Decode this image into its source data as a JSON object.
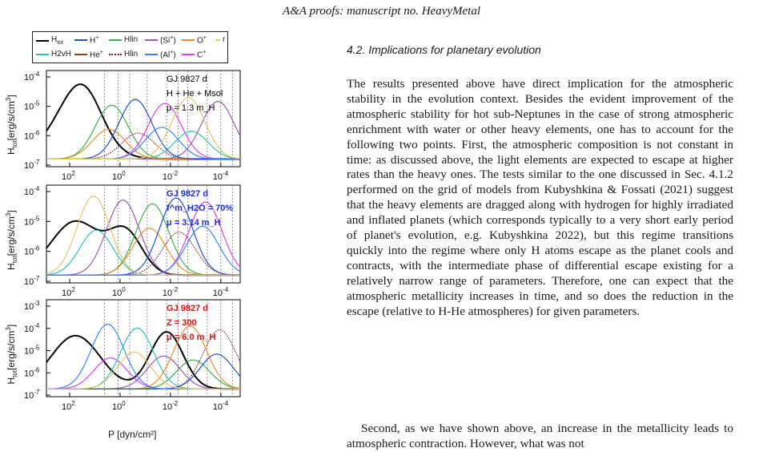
{
  "header": {
    "title": "A&A proofs: manuscript no. HeavyMetal"
  },
  "legend": {
    "items": [
      {
        "label": "H",
        "sub": "tot",
        "color": "#000000",
        "style": "solid"
      },
      {
        "label": "H",
        "sup": "+",
        "color": "#1f4fd8",
        "style": "solid"
      },
      {
        "label": "Hlin",
        "color": "#3cb44b",
        "style": "solid"
      },
      {
        "label": "(Si",
        "sup": "+",
        "tail": ")",
        "color": "#9b59b6",
        "style": "solid"
      },
      {
        "label": "O",
        "sup": "+",
        "color": "#f28c28",
        "style": "solid"
      },
      {
        "label": "r",
        "color": "#e9c46a",
        "style": "solid"
      },
      {
        "label": "H2vH",
        "color": "#2ec4b6",
        "style": "solid"
      },
      {
        "label": "He",
        "sup": "+",
        "color": "#7a4a1e",
        "style": "solid"
      },
      {
        "label": "Hlin",
        "color": "#8b1a2a",
        "style": "dotted"
      },
      {
        "label": "(Al",
        "sup": "+",
        "tail": ")",
        "color": "#3a86ff",
        "style": "solid"
      },
      {
        "label": "C",
        "sup": "+",
        "color": "#e040fb",
        "style": "solid"
      }
    ]
  },
  "figure": {
    "ylabel": "H_tot [erg/s/cm^3]",
    "xlabel": "P [dyn/cm²]",
    "xticks": [
      "10^2",
      "10^0",
      "10^-2",
      "10^-4"
    ],
    "panels": [
      {
        "yticks": [
          "10^-4",
          "10^-5",
          "10^-6",
          "10^-7"
        ],
        "anno": [
          "GJ 9827 d",
          "H + He + Msol",
          "μ = 1.3 m_H"
        ],
        "anno_color": "#000000"
      },
      {
        "yticks": [
          "10^-4",
          "10^-5",
          "10^-6",
          "10^-7"
        ],
        "anno": [
          "GJ 9827 d",
          "f^m_H2O = 70%",
          "μ = 3.14 m_H"
        ],
        "anno_color": "#1f2fd8"
      },
      {
        "yticks": [
          "10^-3",
          "10^-4",
          "10^-5",
          "10^-6",
          "10^-7"
        ],
        "anno": [
          "GJ 9827 d",
          "Z = 300",
          "μ = 6.0 m_H"
        ],
        "anno_color": "#e01010"
      }
    ]
  },
  "section": {
    "title": "4.2. Implications for planetary evolution"
  },
  "paragraphs": [
    "The results presented above have direct implication for the atmospheric stability in the evolution context. Besides the evident improvement of the atmospheric stability for hot sub-Neptunes in the case of strong atmospheric enrichment with water or other heavy elements, one has to account for the following two points. First, the atmospheric composition is not constant in time: as discussed above, the light elements are expected to escape at higher rates than the heavy ones. The tests similar to the one discussed in Sec. 4.1.2 performed on the grid of models from Kubyshkina & Fossati (2021) suggest that the heavy elements are dragged along with hydrogen for highly irradiated and inflated planets (which corresponds typically to a very short early period of planet's evolution, e.g. Kubyshkina 2022), but this regime transitions quickly into the regime where only H atoms escape as the planet cools and contracts, with the intermediate phase of differential escape existing for a relatively narrow range of parameters. Therefore, one can expect that the atmospheric metallicity increases in time, and so does the reduction in the escape (relative to H-He atmospheres) for given parameters.",
    "Second, as we have shown above, an increase in the metallicity leads to atmospheric contraction. However, what was not"
  ]
}
